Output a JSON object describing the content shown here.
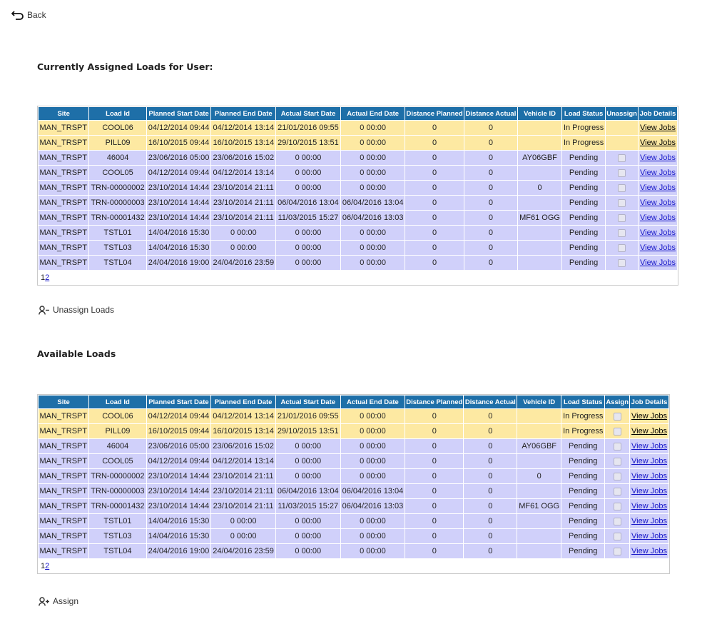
{
  "nav": {
    "back_label": "Back"
  },
  "assigned": {
    "title": "Currently Assigned Loads for User:",
    "headers": [
      "Site",
      "Load Id",
      "Planned Start Date",
      "Planned End Date",
      "Actual Start Date",
      "Actual End Date",
      "Distance Planned",
      "Distance Actual",
      "Vehicle ID",
      "Load Status",
      "Unassign",
      "Job Details"
    ],
    "rows": [
      [
        "MAN_TRSPT",
        "COOL06",
        "04/12/2014 09:44",
        "04/12/2014 13:14",
        "21/01/2016 09:55",
        "0 00:00",
        "0",
        "0",
        "",
        "In Progress",
        "",
        "View Jobs"
      ],
      [
        "MAN_TRSPT",
        "PILL09",
        "16/10/2015 09:44",
        "16/10/2015 13:14",
        "29/10/2015 13:51",
        "0 00:00",
        "0",
        "0",
        "",
        "In Progress",
        "",
        "View Jobs"
      ],
      [
        "MAN_TRSPT",
        "46004",
        "23/06/2016 05:00",
        "23/06/2016 15:02",
        "0 00:00",
        "0 00:00",
        "0",
        "0",
        "AY06GBF",
        "Pending",
        "checkbox",
        "View Jobs"
      ],
      [
        "MAN_TRSPT",
        "COOL05",
        "04/12/2014 09:44",
        "04/12/2014 13:14",
        "0 00:00",
        "0 00:00",
        "0",
        "0",
        "",
        "Pending",
        "checkbox",
        "View Jobs"
      ],
      [
        "MAN_TRSPT",
        "TRN-00000002",
        "23/10/2014 14:44",
        "23/10/2014 21:11",
        "0 00:00",
        "0 00:00",
        "0",
        "0",
        "0",
        "Pending",
        "checkbox",
        "View Jobs"
      ],
      [
        "MAN_TRSPT",
        "TRN-00000003",
        "23/10/2014 14:44",
        "23/10/2014 21:11",
        "06/04/2016 13:04",
        "06/04/2016 13:04",
        "0",
        "0",
        "",
        "Pending",
        "checkbox",
        "View Jobs"
      ],
      [
        "MAN_TRSPT",
        "TRN-00001432",
        "23/10/2014 14:44",
        "23/10/2014 21:11",
        "11/03/2015 15:27",
        "06/04/2016 13:03",
        "0",
        "0",
        "MF61 OGG",
        "Pending",
        "checkbox",
        "View Jobs"
      ],
      [
        "MAN_TRSPT",
        "TSTL01",
        "14/04/2016 15:30",
        "0 00:00",
        "0 00:00",
        "0 00:00",
        "0",
        "0",
        "",
        "Pending",
        "checkbox",
        "View Jobs"
      ],
      [
        "MAN_TRSPT",
        "TSTL03",
        "14/04/2016 15:30",
        "0 00:00",
        "0 00:00",
        "0 00:00",
        "0",
        "0",
        "",
        "Pending",
        "checkbox",
        "View Jobs"
      ],
      [
        "MAN_TRSPT",
        "TSTL04",
        "24/04/2016 19:00",
        "24/04/2016 23:59",
        "0 00:00",
        "0 00:00",
        "0",
        "0",
        "",
        "Pending",
        "checkbox",
        "View Jobs"
      ]
    ],
    "pager": {
      "current": "1",
      "next": "2"
    },
    "action_label": "Unassign Loads"
  },
  "available": {
    "title": "Available Loads",
    "headers": [
      "Site",
      "Load Id",
      "Planned Start Date",
      "Planned End Date",
      "Actual Start Date",
      "Actual End Date",
      "Distance Planned",
      "Distance Actual",
      "Vehicle ID",
      "Load Status",
      "Assign",
      "Job Details"
    ],
    "rows": [
      [
        "MAN_TRSPT",
        "COOL06",
        "04/12/2014 09:44",
        "04/12/2014 13:14",
        "21/01/2016 09:55",
        "0 00:00",
        "0",
        "0",
        "",
        "In Progress",
        "checkbox",
        "View Jobs"
      ],
      [
        "MAN_TRSPT",
        "PILL09",
        "16/10/2015 09:44",
        "16/10/2015 13:14",
        "29/10/2015 13:51",
        "0 00:00",
        "0",
        "0",
        "",
        "In Progress",
        "checkbox",
        "View Jobs"
      ],
      [
        "MAN_TRSPT",
        "46004",
        "23/06/2016 05:00",
        "23/06/2016 15:02",
        "0 00:00",
        "0 00:00",
        "0",
        "0",
        "AY06GBF",
        "Pending",
        "checkbox",
        "View Jobs"
      ],
      [
        "MAN_TRSPT",
        "COOL05",
        "04/12/2014 09:44",
        "04/12/2014 13:14",
        "0 00:00",
        "0 00:00",
        "0",
        "0",
        "",
        "Pending",
        "checkbox",
        "View Jobs"
      ],
      [
        "MAN_TRSPT",
        "TRN-00000002",
        "23/10/2014 14:44",
        "23/10/2014 21:11",
        "0 00:00",
        "0 00:00",
        "0",
        "0",
        "0",
        "Pending",
        "checkbox",
        "View Jobs"
      ],
      [
        "MAN_TRSPT",
        "TRN-00000003",
        "23/10/2014 14:44",
        "23/10/2014 21:11",
        "06/04/2016 13:04",
        "06/04/2016 13:04",
        "0",
        "0",
        "",
        "Pending",
        "checkbox",
        "View Jobs"
      ],
      [
        "MAN_TRSPT",
        "TRN-00001432",
        "23/10/2014 14:44",
        "23/10/2014 21:11",
        "11/03/2015 15:27",
        "06/04/2016 13:03",
        "0",
        "0",
        "MF61 OGG",
        "Pending",
        "checkbox",
        "View Jobs"
      ],
      [
        "MAN_TRSPT",
        "TSTL01",
        "14/04/2016 15:30",
        "0 00:00",
        "0 00:00",
        "0 00:00",
        "0",
        "0",
        "",
        "Pending",
        "checkbox",
        "View Jobs"
      ],
      [
        "MAN_TRSPT",
        "TSTL03",
        "14/04/2016 15:30",
        "0 00:00",
        "0 00:00",
        "0 00:00",
        "0",
        "0",
        "",
        "Pending",
        "checkbox",
        "View Jobs"
      ],
      [
        "MAN_TRSPT",
        "TSTL04",
        "24/04/2016 19:00",
        "24/04/2016 23:59",
        "0 00:00",
        "0 00:00",
        "0",
        "0",
        "",
        "Pending",
        "checkbox",
        "View Jobs"
      ]
    ],
    "pager": {
      "current": "1",
      "next": "2"
    },
    "action_label": "Assign"
  },
  "colors": {
    "header_bg": "#1e6fa8",
    "in_progress_row": "#fde9a2",
    "pending_row": "#d0d0fa",
    "link": "#1515c8"
  },
  "icons": {
    "back": "back-arrow-icon",
    "unassign": "user-minus-icon",
    "assign": "user-plus-icon"
  }
}
